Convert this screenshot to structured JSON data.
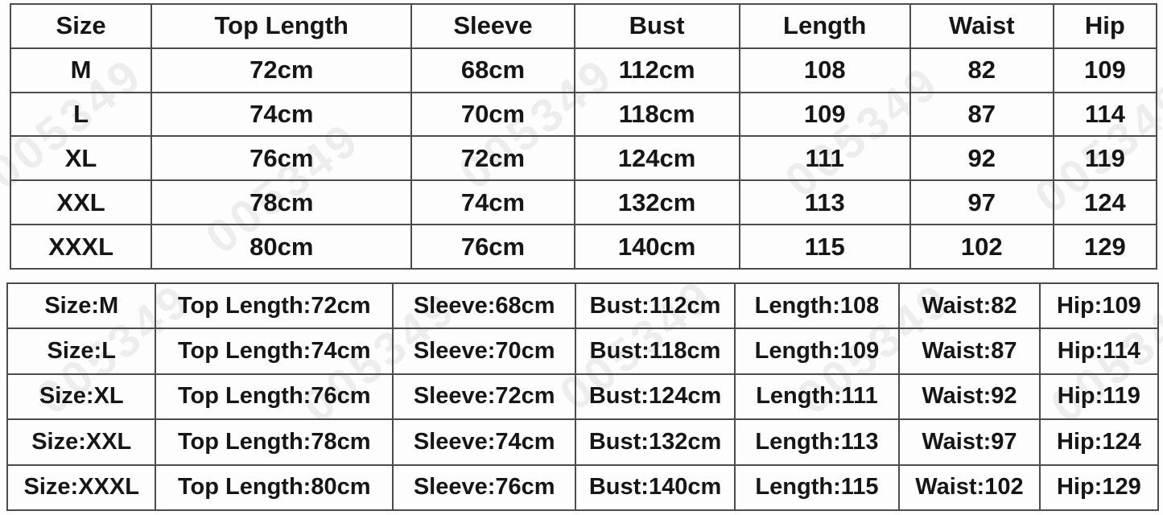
{
  "chart_data": [
    {
      "type": "table",
      "columns": [
        "Size",
        "Top Length",
        "Sleeve",
        "Bust",
        "Length",
        "Waist",
        "Hip"
      ],
      "rows": [
        [
          "M",
          "72cm",
          "68cm",
          "112cm",
          "108",
          "82",
          "109"
        ],
        [
          "L",
          "74cm",
          "70cm",
          "118cm",
          "109",
          "87",
          "114"
        ],
        [
          "XL",
          "76cm",
          "72cm",
          "124cm",
          "111",
          "92",
          "119"
        ],
        [
          "XXL",
          "78cm",
          "74cm",
          "132cm",
          "113",
          "97",
          "124"
        ],
        [
          "XXXL",
          "80cm",
          "76cm",
          "140cm",
          "115",
          "102",
          "129"
        ]
      ]
    },
    {
      "type": "table",
      "rows": [
        [
          "Size:M",
          "Top Length:72cm",
          "Sleeve:68cm",
          "Bust:112cm",
          "Length:108",
          "Waist:82",
          "Hip:109"
        ],
        [
          "Size:L",
          "Top Length:74cm",
          "Sleeve:70cm",
          "Bust:118cm",
          "Length:109",
          "Waist:87",
          "Hip:114"
        ],
        [
          "Size:XL",
          "Top Length:76cm",
          "Sleeve:72cm",
          "Bust:124cm",
          "Length:111",
          "Waist:92",
          "Hip:119"
        ],
        [
          "Size:XXL",
          "Top Length:78cm",
          "Sleeve:74cm",
          "Bust:132cm",
          "Length:113",
          "Waist:97",
          "Hip:124"
        ],
        [
          "Size:XXXL",
          "Top Length:80cm",
          "Sleeve:76cm",
          "Bust:140cm",
          "Length:115",
          "Waist:102",
          "Hip:129"
        ]
      ]
    }
  ],
  "watermark": {
    "text": "005349",
    "color": "#8f8f8f"
  },
  "colors": {
    "table_border": "#4c4c4c",
    "text": "#161616",
    "background": "#fdfdfd"
  }
}
